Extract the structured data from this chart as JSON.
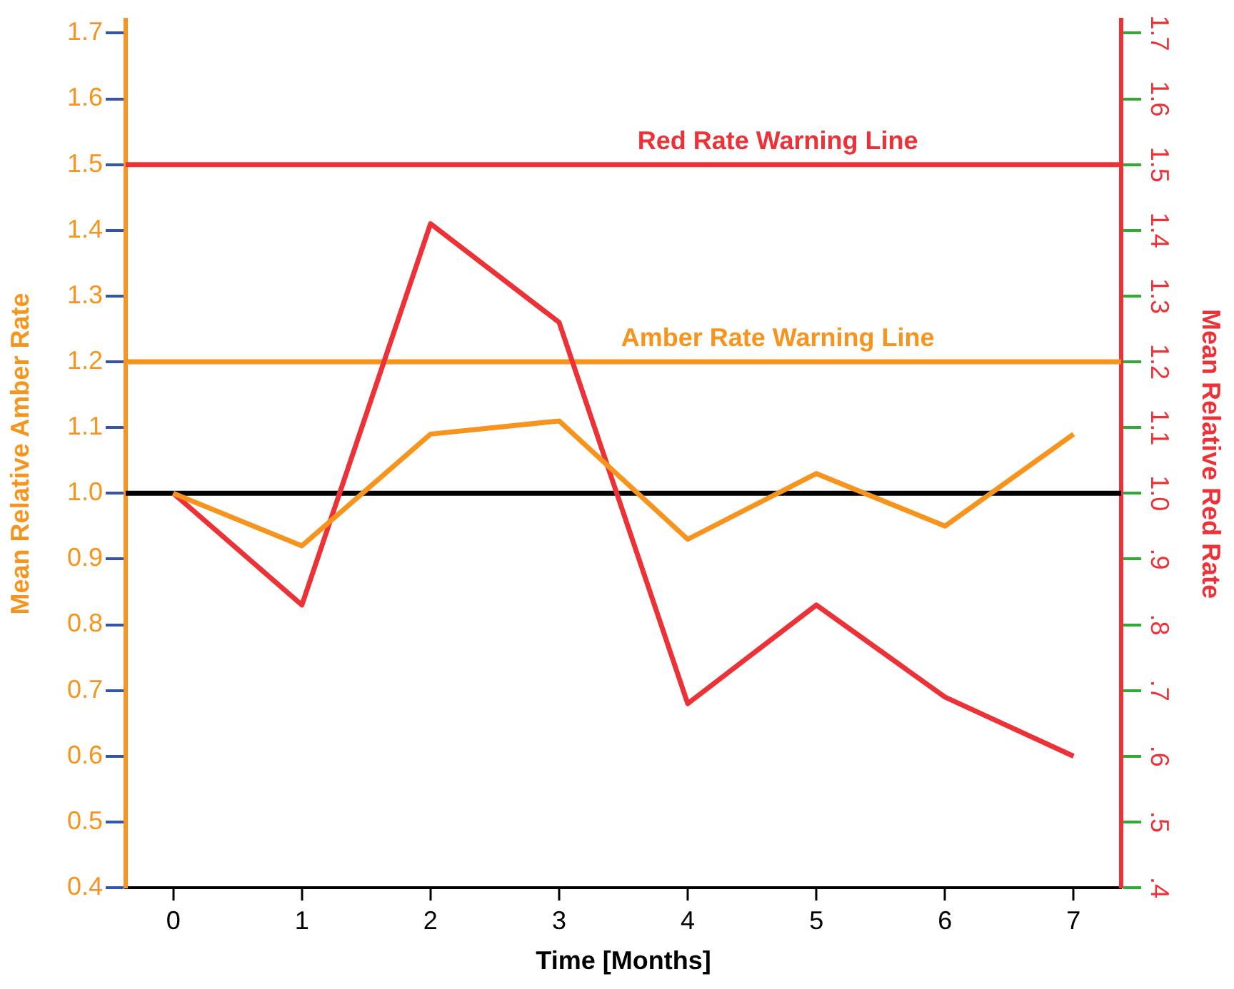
{
  "chart_data": {
    "type": "line",
    "xlabel": "Time [Months]",
    "ylabel": "Mean Relative Amber Rate",
    "y2label": "Mean Relative Red Rate",
    "x": [
      0,
      1,
      2,
      3,
      4,
      5,
      6,
      7
    ],
    "series": [
      {
        "color": "#f7941d",
        "values": [
          1.0,
          0.92,
          1.09,
          1.11,
          0.93,
          1.03,
          0.95,
          1.09
        ]
      },
      {
        "color": "#ed3237",
        "axis": "y2",
        "values": [
          1.0,
          0.83,
          1.41,
          1.26,
          0.68,
          0.83,
          0.69,
          0.6
        ]
      }
    ],
    "xlim": [
      -0.37,
      7.37
    ],
    "xticks": [
      0,
      1,
      2,
      3,
      4,
      5,
      6,
      7
    ],
    "ylim": [
      0.4,
      1.72
    ],
    "yticks": [
      0.4,
      0.5,
      0.6,
      0.7,
      0.8,
      0.9,
      {
        "value": 1,
        "label": "1.0"
      },
      1.1,
      1.2,
      1.3,
      1.4,
      1.5,
      1.6,
      1.7
    ],
    "y2lim": [
      0.4,
      1.72
    ],
    "y2ticks": [
      {
        "value": 0.4,
        "label": ".4"
      },
      {
        "value": 0.5,
        "label": ".5"
      },
      {
        "value": 0.6,
        "label": ".6"
      },
      {
        "value": 0.7,
        "label": ".7"
      },
      {
        "value": 0.8,
        "label": ".8"
      },
      {
        "value": 0.9,
        "label": ".9"
      },
      {
        "value": 1,
        "label": "1.0"
      },
      1.1,
      1.2,
      1.3,
      1.4,
      1.5,
      1.6,
      1.7
    ],
    "ref_lines": [
      {
        "axis": "y2",
        "value": 1.5,
        "label": "Red Rate Warning Line",
        "color": "#ed3237"
      },
      {
        "axis": "y",
        "value": 1.2,
        "label": "Amber Rate Warning Line",
        "color": "#f7941d"
      },
      {
        "axis": "y",
        "value": 1.0,
        "color": "#000000"
      }
    ],
    "grid": false,
    "legend": false,
    "marker": "none",
    "line_style": "solid"
  }
}
